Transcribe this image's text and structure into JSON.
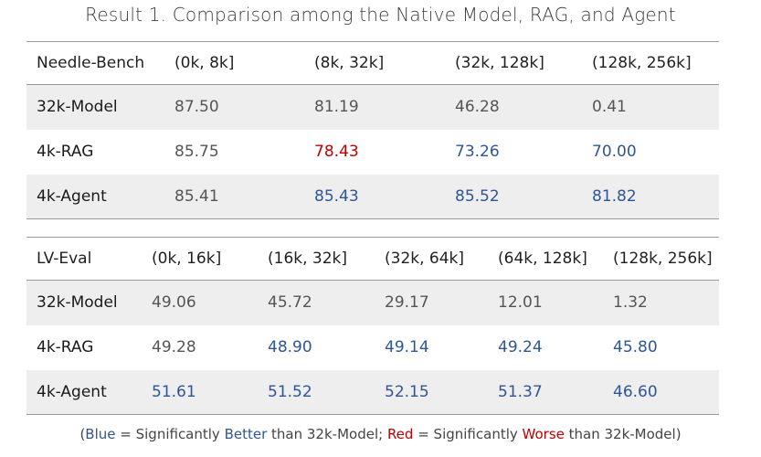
{
  "title": "Result 1. Comparison among the Native Model, RAG, and Agent",
  "colors": {
    "blue": "#2f5597",
    "red": "#c00000",
    "shade": "#eeeeee"
  },
  "tables": [
    {
      "header": [
        "Needle-Bench",
        "(0k, 8k]",
        "(8k, 32k]",
        "(32k, 128k]",
        "(128k, 256k]"
      ],
      "rows": [
        {
          "name": "32k-Model",
          "values": [
            "87.50",
            "81.19",
            "46.28",
            "0.41"
          ],
          "marks": [
            "none",
            "none",
            "none",
            "none"
          ]
        },
        {
          "name": "4k-RAG",
          "values": [
            "85.75",
            "78.43",
            "73.26",
            "70.00"
          ],
          "marks": [
            "none",
            "red",
            "blue",
            "blue"
          ]
        },
        {
          "name": "4k-Agent",
          "values": [
            "85.41",
            "85.43",
            "85.52",
            "81.82"
          ],
          "marks": [
            "none",
            "blue",
            "blue",
            "blue"
          ]
        }
      ]
    },
    {
      "header": [
        "LV-Eval",
        "(0k, 16k]",
        "(16k, 32k]",
        "(32k, 64k]",
        "(64k, 128k]",
        "(128k, 256k]"
      ],
      "rows": [
        {
          "name": "32k-Model",
          "values": [
            "49.06",
            "45.72",
            "29.17",
            "12.01",
            "1.32"
          ],
          "marks": [
            "none",
            "none",
            "none",
            "none",
            "none"
          ]
        },
        {
          "name": "4k-RAG",
          "values": [
            "49.28",
            "48.90",
            "49.14",
            "49.24",
            "45.80"
          ],
          "marks": [
            "none",
            "blue",
            "blue",
            "blue",
            "blue"
          ]
        },
        {
          "name": "4k-Agent",
          "values": [
            "51.61",
            "51.52",
            "52.15",
            "51.37",
            "46.60"
          ],
          "marks": [
            "blue",
            "blue",
            "blue",
            "blue",
            "blue"
          ]
        }
      ]
    }
  ],
  "caption": {
    "open": "(",
    "blue_word": "Blue",
    "part1": " = Significantly ",
    "better_word": "Better",
    "part2": " than 32k-Model; ",
    "red_word": "Red",
    "part3": " = Significantly ",
    "worse_word": "Worse",
    "part4": " than 32k-Model)"
  }
}
